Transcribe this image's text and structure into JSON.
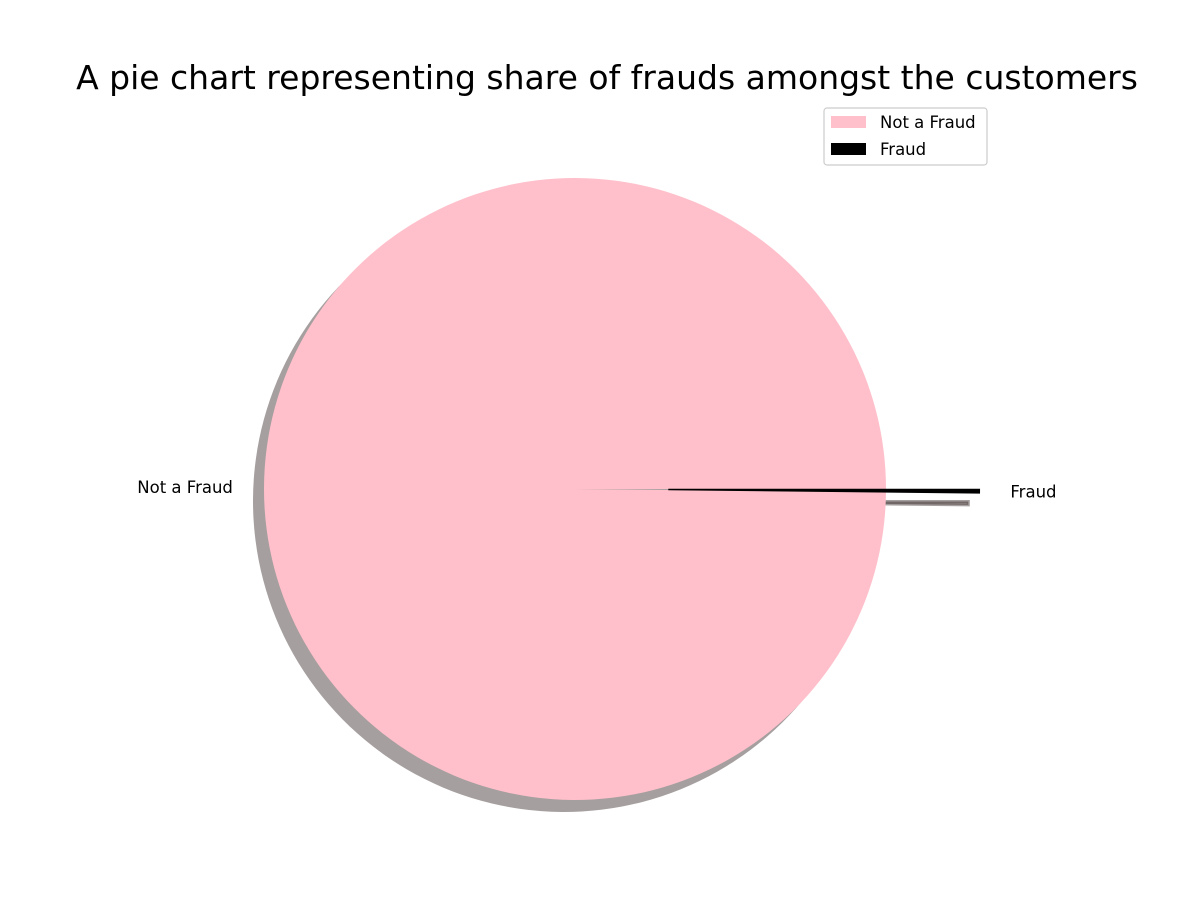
{
  "chart_data": {
    "type": "pie",
    "title": "A pie chart representing share of frauds amongst the customers",
    "labels": [
      "Not a Fraud",
      "Fraud"
    ],
    "values": [
      99.83,
      0.17
    ],
    "colors": [
      "#ffc0cb",
      "#000000"
    ],
    "explode": [
      0,
      0.3
    ],
    "shadow": true,
    "start_angle": 0,
    "legend": {
      "placement": "upper-right",
      "entries": [
        "Not a Fraud",
        "Fraud"
      ]
    }
  }
}
